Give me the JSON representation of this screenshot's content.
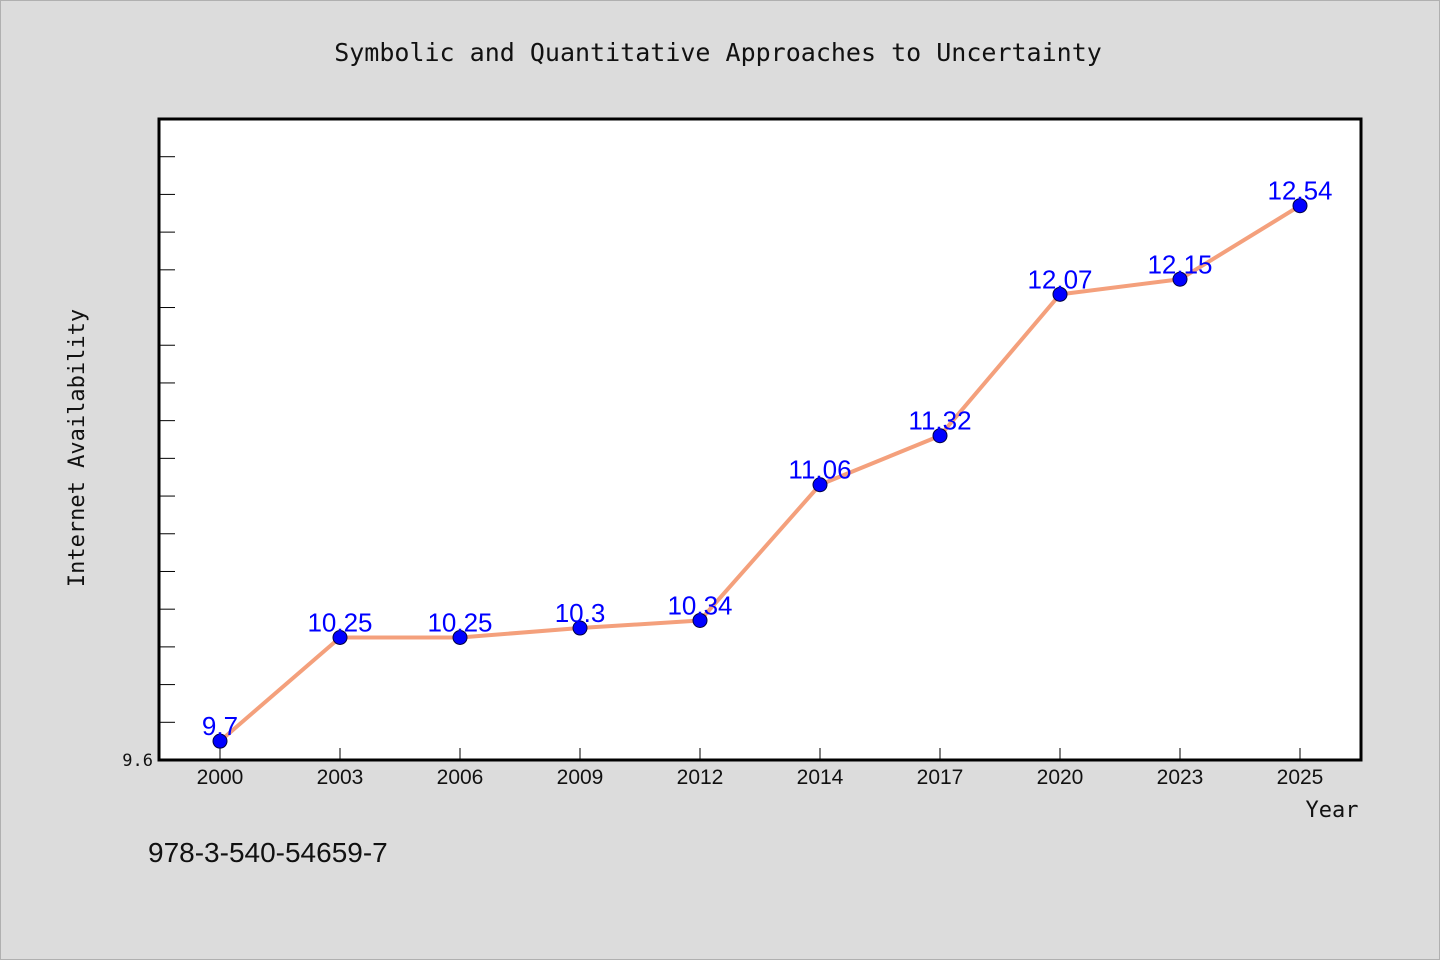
{
  "chart_data": {
    "type": "line",
    "title": "Symbolic and Quantitative Approaches to Uncertainty",
    "xlabel": "Year",
    "ylabel": "Internet Availability",
    "categories": [
      "2000",
      "2003",
      "2006",
      "2009",
      "2012",
      "2014",
      "2017",
      "2020",
      "2023",
      "2025"
    ],
    "values": [
      9.7,
      10.25,
      10.25,
      10.3,
      10.34,
      11.06,
      11.32,
      12.07,
      12.15,
      12.54
    ],
    "data_labels": [
      "9.7",
      "10.25",
      "10.25",
      "10.3",
      "10.34",
      "11.06",
      "11.32",
      "12.07",
      "12.15",
      "12.54"
    ],
    "ylim": [
      9.6,
      13.0
    ],
    "y_tick_label": "9.6",
    "grid": false,
    "colors": {
      "line": "#f4a07c",
      "marker": "#0000ff",
      "label": "#0000ff",
      "background": "#dcdcdc",
      "plot_background": "#ffffff"
    }
  },
  "footer_text": "978-3-540-54659-7"
}
